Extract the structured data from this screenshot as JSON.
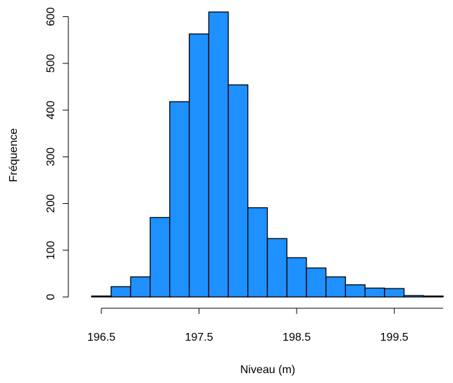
{
  "chart_data": {
    "type": "histogram",
    "x_label": "Niveau (m)",
    "y_label": "Fréquence",
    "bins": [
      196.4,
      196.6,
      196.8,
      197.0,
      197.2,
      197.4,
      197.6,
      197.8,
      198.0,
      198.2,
      198.4,
      198.6,
      198.8,
      199.0,
      199.2,
      199.4,
      199.6,
      199.8,
      200.0
    ],
    "values": [
      2,
      22,
      43,
      170,
      418,
      563,
      610,
      454,
      191,
      125,
      84,
      62,
      43,
      26,
      19,
      18,
      3,
      2
    ],
    "color": "#1e90ff",
    "xlim": [
      196.4,
      200.0
    ],
    "xticks": [
      196.5,
      197.5,
      198.5,
      199.5
    ],
    "ylim": [
      0,
      610
    ],
    "yticks": [
      0,
      100,
      200,
      300,
      400,
      500,
      600
    ]
  }
}
